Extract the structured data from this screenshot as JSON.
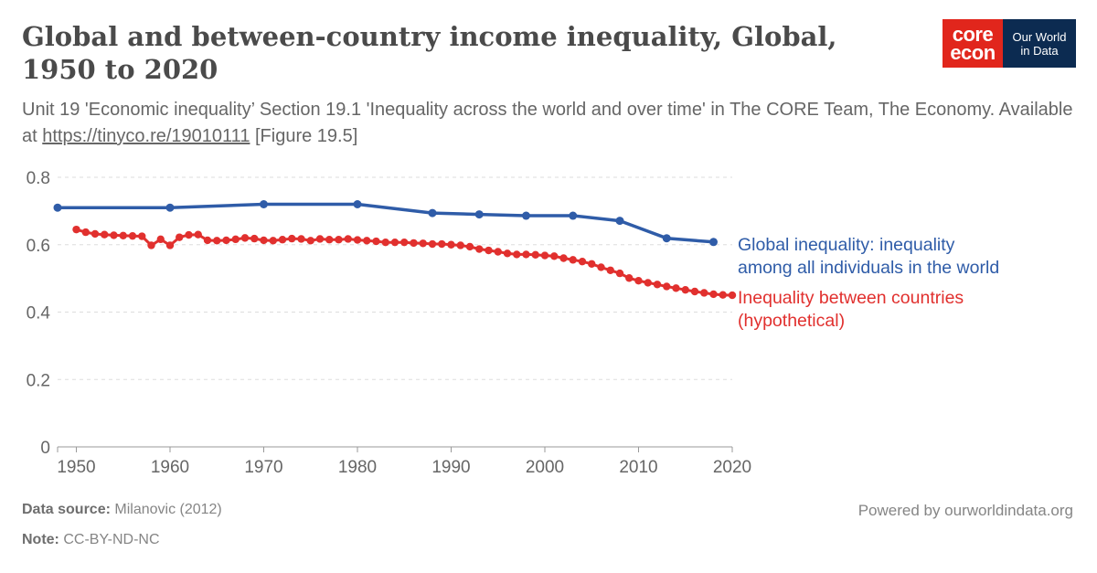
{
  "header": {
    "title": "Global and between-country income inequality, Global, 1950 to 2020",
    "subtitle_text": "Unit 19 'Economic inequality’ Section 19.1 'Inequality across the world and over time' in The CORE Team, The Economy. Available at ",
    "subtitle_link": "https://tinyco.re/19010111",
    "subtitle_suffix": " [Figure 19.5]"
  },
  "logo": {
    "core_line1": "core",
    "core_line2": "econ",
    "owid_line1": "Our World",
    "owid_line2": "in Data"
  },
  "footer": {
    "source_label": "Data source:",
    "source_value": "Milanovic (2012)",
    "note_label": "Note:",
    "note_value": "CC-BY-ND-NC",
    "powered_by": "Powered by ourworldindata.org"
  },
  "chart_data": {
    "type": "line",
    "xlim": [
      1948,
      2020
    ],
    "ylim": [
      0,
      0.8
    ],
    "x_ticks": [
      1950,
      1960,
      1970,
      1980,
      1990,
      2000,
      2010,
      2020
    ],
    "y_ticks": [
      0,
      0.2,
      0.4,
      0.6,
      0.8
    ],
    "grid": "horizontal dashed",
    "series": [
      {
        "name": "Global inequality: inequality among all individuals in the world",
        "label_lines": [
          "Global inequality: inequality",
          "among all individuals in the world"
        ],
        "color": "#2f5ca8",
        "points": [
          [
            1948,
            0.71
          ],
          [
            1960,
            0.71
          ],
          [
            1970,
            0.72
          ],
          [
            1980,
            0.72
          ],
          [
            1988,
            0.694
          ],
          [
            1993,
            0.69
          ],
          [
            1998,
            0.686
          ],
          [
            2003,
            0.686
          ],
          [
            2008,
            0.671
          ],
          [
            2013,
            0.619
          ],
          [
            2018,
            0.608
          ]
        ]
      },
      {
        "name": "Inequality between countries (hypothetical)",
        "label_lines": [
          "Inequality between countries",
          "(hypothetical)"
        ],
        "color": "#e1302e",
        "points": [
          [
            1950,
            0.645
          ],
          [
            1951,
            0.637
          ],
          [
            1952,
            0.632
          ],
          [
            1953,
            0.63
          ],
          [
            1954,
            0.628
          ],
          [
            1955,
            0.627
          ],
          [
            1956,
            0.626
          ],
          [
            1957,
            0.625
          ],
          [
            1958,
            0.598
          ],
          [
            1959,
            0.616
          ],
          [
            1960,
            0.598
          ],
          [
            1961,
            0.622
          ],
          [
            1962,
            0.629
          ],
          [
            1963,
            0.63
          ],
          [
            1964,
            0.613
          ],
          [
            1965,
            0.612
          ],
          [
            1966,
            0.613
          ],
          [
            1967,
            0.616
          ],
          [
            1968,
            0.62
          ],
          [
            1969,
            0.618
          ],
          [
            1970,
            0.613
          ],
          [
            1971,
            0.612
          ],
          [
            1972,
            0.615
          ],
          [
            1973,
            0.618
          ],
          [
            1974,
            0.617
          ],
          [
            1975,
            0.612
          ],
          [
            1976,
            0.617
          ],
          [
            1977,
            0.615
          ],
          [
            1978,
            0.615
          ],
          [
            1979,
            0.617
          ],
          [
            1980,
            0.614
          ],
          [
            1981,
            0.612
          ],
          [
            1982,
            0.61
          ],
          [
            1983,
            0.607
          ],
          [
            1984,
            0.607
          ],
          [
            1985,
            0.607
          ],
          [
            1986,
            0.605
          ],
          [
            1987,
            0.604
          ],
          [
            1988,
            0.602
          ],
          [
            1989,
            0.602
          ],
          [
            1990,
            0.6
          ],
          [
            1991,
            0.598
          ],
          [
            1992,
            0.594
          ],
          [
            1993,
            0.587
          ],
          [
            1994,
            0.583
          ],
          [
            1995,
            0.579
          ],
          [
            1996,
            0.574
          ],
          [
            1997,
            0.571
          ],
          [
            1998,
            0.571
          ],
          [
            1999,
            0.57
          ],
          [
            2000,
            0.568
          ],
          [
            2001,
            0.566
          ],
          [
            2002,
            0.56
          ],
          [
            2003,
            0.555
          ],
          [
            2004,
            0.55
          ],
          [
            2005,
            0.543
          ],
          [
            2006,
            0.533
          ],
          [
            2007,
            0.524
          ],
          [
            2008,
            0.515
          ],
          [
            2009,
            0.501
          ],
          [
            2010,
            0.493
          ],
          [
            2011,
            0.487
          ],
          [
            2012,
            0.482
          ],
          [
            2013,
            0.476
          ],
          [
            2014,
            0.471
          ],
          [
            2015,
            0.466
          ],
          [
            2016,
            0.461
          ],
          [
            2017,
            0.457
          ],
          [
            2018,
            0.453
          ],
          [
            2019,
            0.451
          ],
          [
            2020,
            0.45
          ]
        ]
      }
    ]
  }
}
